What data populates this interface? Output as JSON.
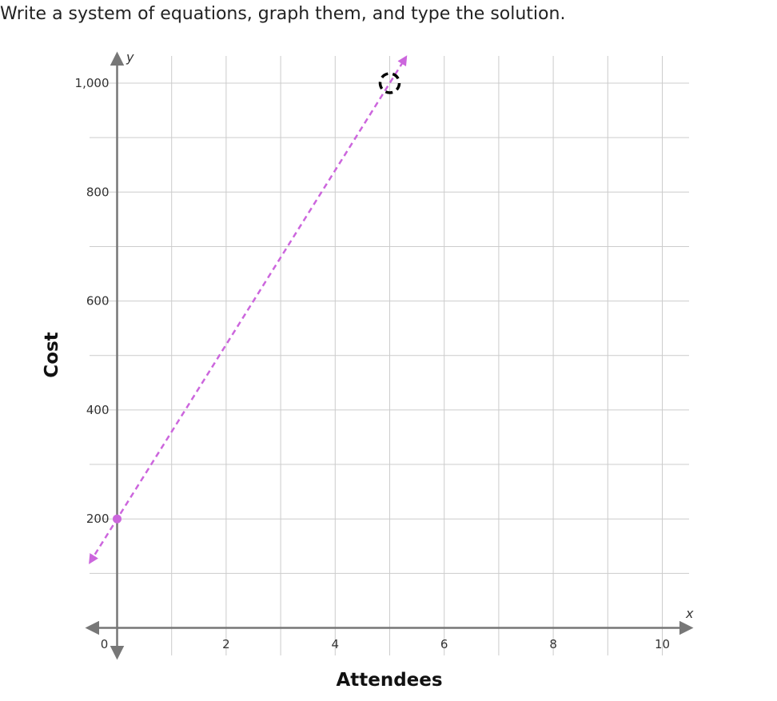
{
  "prompt": "Write a system of equations, graph them, and type the solution.",
  "chart_data": {
    "type": "line",
    "xlabel": "Attendees",
    "ylabel": "Cost",
    "x_axis_var": "x",
    "y_axis_var": "y",
    "xlim": [
      0,
      10
    ],
    "ylim": [
      0,
      1000
    ],
    "x_grid_step": 1,
    "y_grid_step": 100,
    "x_ticks": [
      {
        "value": 0,
        "label": "0"
      },
      {
        "value": 2,
        "label": "2"
      },
      {
        "value": 4,
        "label": "4"
      },
      {
        "value": 6,
        "label": "6"
      },
      {
        "value": 8,
        "label": "8"
      },
      {
        "value": 10,
        "label": "10"
      }
    ],
    "y_ticks": [
      {
        "value": 200,
        "label": "200"
      },
      {
        "value": 400,
        "label": "400"
      },
      {
        "value": 600,
        "label": "600"
      },
      {
        "value": 800,
        "label": "800"
      },
      {
        "value": 1000,
        "label": "1,000"
      }
    ],
    "grid": true,
    "series": [
      {
        "style": "dashed",
        "color": "#cc66dd",
        "slope": 160,
        "intercept": 200,
        "x_range": [
          -0.5,
          5.3
        ],
        "points": [
          {
            "x": 0,
            "y": 200
          }
        ],
        "arrows": "both"
      }
    ],
    "cursor_target": {
      "x": 5,
      "y": 1000,
      "style": "dashed-circle",
      "color": "#000000"
    }
  }
}
